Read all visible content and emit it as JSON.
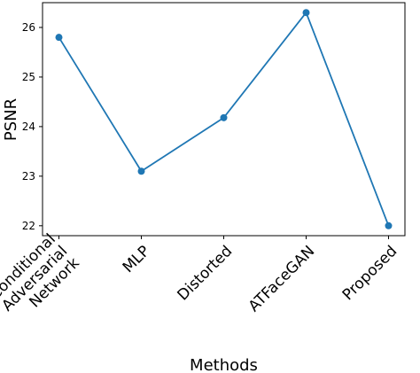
{
  "chart_data": {
    "type": "line",
    "title": "",
    "xlabel": "Methods",
    "ylabel": "PSNR",
    "categories": [
      [
        "Conditional",
        "Adversarial",
        "Network"
      ],
      [
        "MLP"
      ],
      [
        "Distorted"
      ],
      [
        "ATFaceGAN"
      ],
      [
        "Proposed"
      ]
    ],
    "series": [
      {
        "values": [
          25.8,
          23.1,
          24.18,
          26.3,
          22.0
        ],
        "color": "#1f77b4",
        "marker": "circle"
      }
    ],
    "ylim": [
      21.8,
      26.5
    ],
    "yticks": [
      22,
      23,
      24,
      25,
      26
    ],
    "grid": false,
    "legend": "none"
  }
}
